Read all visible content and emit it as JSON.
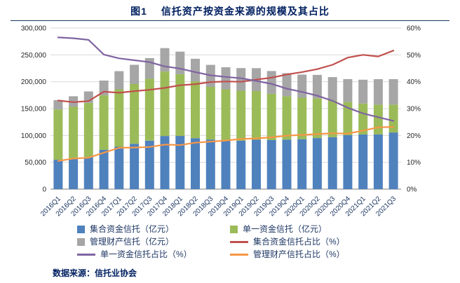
{
  "figure": {
    "title": "图1　 信托资产按资金来源的规模及其占比",
    "source": "数据来源：信托业协会"
  },
  "chart_data": {
    "type": "combo",
    "title": "图1 信托资产按资金来源的规模及其占比",
    "xlabel": "",
    "ylabel_left": "亿元",
    "ylabel_right": "%",
    "grid": true,
    "legend_position": "bottom",
    "categories": [
      "2016Q1",
      "2016Q2",
      "2016Q3",
      "2016Q4",
      "2017Q1",
      "2017Q2",
      "2017Q3",
      "2017Q4",
      "2018Q1",
      "2018Q2",
      "2018Q3",
      "2018Q4",
      "2019Q1",
      "2019Q2",
      "2019Q3",
      "2019Q4",
      "2020Q1",
      "2020Q2",
      "2020Q3",
      "2020Q4",
      "2021Q1",
      "2021Q2",
      "2021Q3"
    ],
    "left_axis": {
      "min": 0,
      "max": 300000,
      "step": 50000,
      "format": "thousands",
      "ticks": [
        "0",
        "50,000",
        "100,000",
        "150,000",
        "200,000",
        "250,000",
        "300,000"
      ]
    },
    "right_axis": {
      "min": 0,
      "max": 60,
      "step": 10,
      "format": "percent",
      "ticks": [
        "0%",
        "10%",
        "20%",
        "30%",
        "40%",
        "50%",
        "60%"
      ]
    },
    "bar_series": [
      {
        "name": "集合资金信托（亿元）",
        "color": "#4F81BD",
        "axis": "left",
        "values": [
          54700,
          56000,
          59600,
          73400,
          78900,
          84500,
          90300,
          99000,
          99100,
          94900,
          92300,
          91000,
          90200,
          91900,
          91300,
          92200,
          93000,
          95100,
          96600,
          100400,
          101900,
          102000,
          105500
        ]
      },
      {
        "name": "单一资金信托（亿元）",
        "color": "#9BBB59",
        "axis": "left",
        "values": [
          93700,
          97200,
          101000,
          101300,
          107000,
          111100,
          115500,
          120000,
          115000,
          105800,
          98100,
          94900,
          93100,
          90800,
          86200,
          80800,
          77200,
          74100,
          68600,
          62100,
          57500,
          55300,
          51900
        ]
      },
      {
        "name": "管理财产信托（亿元）",
        "color": "#A6A6A6",
        "axis": "left",
        "values": [
          17400,
          19700,
          21300,
          27500,
          33800,
          35900,
          38300,
          43600,
          42000,
          42000,
          41000,
          41100,
          42100,
          42600,
          42400,
          43000,
          43100,
          43600,
          43400,
          42400,
          44400,
          47500,
          47400
        ]
      }
    ],
    "line_series": [
      {
        "name": "集合资金信托占比（%）",
        "color": "#C0504D",
        "axis": "right",
        "values": [
          33.0,
          32.4,
          32.8,
          36.3,
          35.9,
          36.5,
          37.0,
          37.7,
          38.7,
          39.1,
          39.9,
          40.1,
          40.0,
          40.8,
          41.5,
          42.7,
          43.6,
          44.7,
          46.3,
          49.0,
          50.0,
          49.4,
          51.6
        ]
      },
      {
        "name": "单一资金信托占比（%）",
        "color": "#8064A2",
        "axis": "right",
        "values": [
          56.5,
          56.2,
          55.6,
          50.1,
          48.7,
          48.0,
          47.3,
          45.7,
          44.9,
          43.6,
          42.4,
          41.8,
          41.3,
          40.3,
          39.2,
          37.4,
          36.2,
          34.8,
          32.9,
          30.3,
          28.2,
          26.8,
          25.4
        ]
      },
      {
        "name": "管理财产信托占比（%）",
        "color": "#F79646",
        "axis": "right",
        "values": [
          10.5,
          11.4,
          11.7,
          13.6,
          15.4,
          15.5,
          15.7,
          16.6,
          16.4,
          17.3,
          17.7,
          18.1,
          18.7,
          18.9,
          19.3,
          19.9,
          20.2,
          20.5,
          20.8,
          20.7,
          21.8,
          23.0,
          23.2
        ]
      }
    ],
    "colors": {
      "bar_blue": "#4F81BD",
      "bar_green": "#9BBB59",
      "bar_gray": "#A6A6A6",
      "line_red": "#C0504D",
      "line_purple": "#8064A2",
      "line_orange": "#F79646",
      "title_navy": "#002060",
      "gridline": "#D9D9D9"
    }
  }
}
